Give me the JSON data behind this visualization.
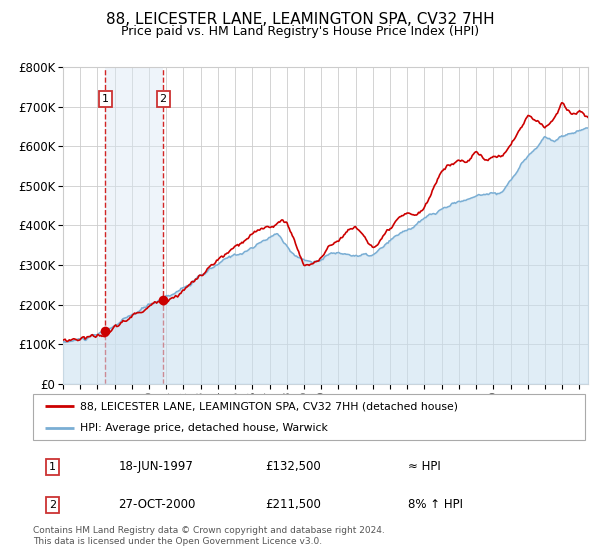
{
  "title": "88, LEICESTER LANE, LEAMINGTON SPA, CV32 7HH",
  "subtitle": "Price paid vs. HM Land Registry's House Price Index (HPI)",
  "ylim": [
    0,
    800000
  ],
  "xlim_start": 1995.0,
  "xlim_end": 2025.5,
  "yticks": [
    0,
    100000,
    200000,
    300000,
    400000,
    500000,
    600000,
    700000,
    800000
  ],
  "ytick_labels": [
    "£0",
    "£100K",
    "£200K",
    "£300K",
    "£400K",
    "£500K",
    "£600K",
    "£700K",
    "£800K"
  ],
  "xticks": [
    1995,
    1996,
    1997,
    1998,
    1999,
    2000,
    2001,
    2002,
    2003,
    2004,
    2005,
    2006,
    2007,
    2008,
    2009,
    2010,
    2011,
    2012,
    2013,
    2014,
    2015,
    2016,
    2017,
    2018,
    2019,
    2020,
    2021,
    2022,
    2023,
    2024,
    2025
  ],
  "sale1_date": 1997.46,
  "sale1_price": 132500,
  "sale1_label": "1",
  "sale2_date": 2000.82,
  "sale2_price": 211500,
  "sale2_label": "2",
  "sale_color": "#cc0000",
  "hpi_fill_color": "#c8dff0",
  "hpi_line_color": "#7aaed4",
  "background_color": "#ffffff",
  "grid_color": "#cccccc",
  "title_fontsize": 11,
  "subtitle_fontsize": 9,
  "legend_entry1": "88, LEICESTER LANE, LEAMINGTON SPA, CV32 7HH (detached house)",
  "legend_entry2": "HPI: Average price, detached house, Warwick",
  "table_row1": [
    "1",
    "18-JUN-1997",
    "£132,500",
    "≈ HPI"
  ],
  "table_row2": [
    "2",
    "27-OCT-2000",
    "£211,500",
    "8% ↑ HPI"
  ],
  "footer": "Contains HM Land Registry data © Crown copyright and database right 2024.\nThis data is licensed under the Open Government Licence v3.0.",
  "shaded_region_color": "#dae8f5"
}
